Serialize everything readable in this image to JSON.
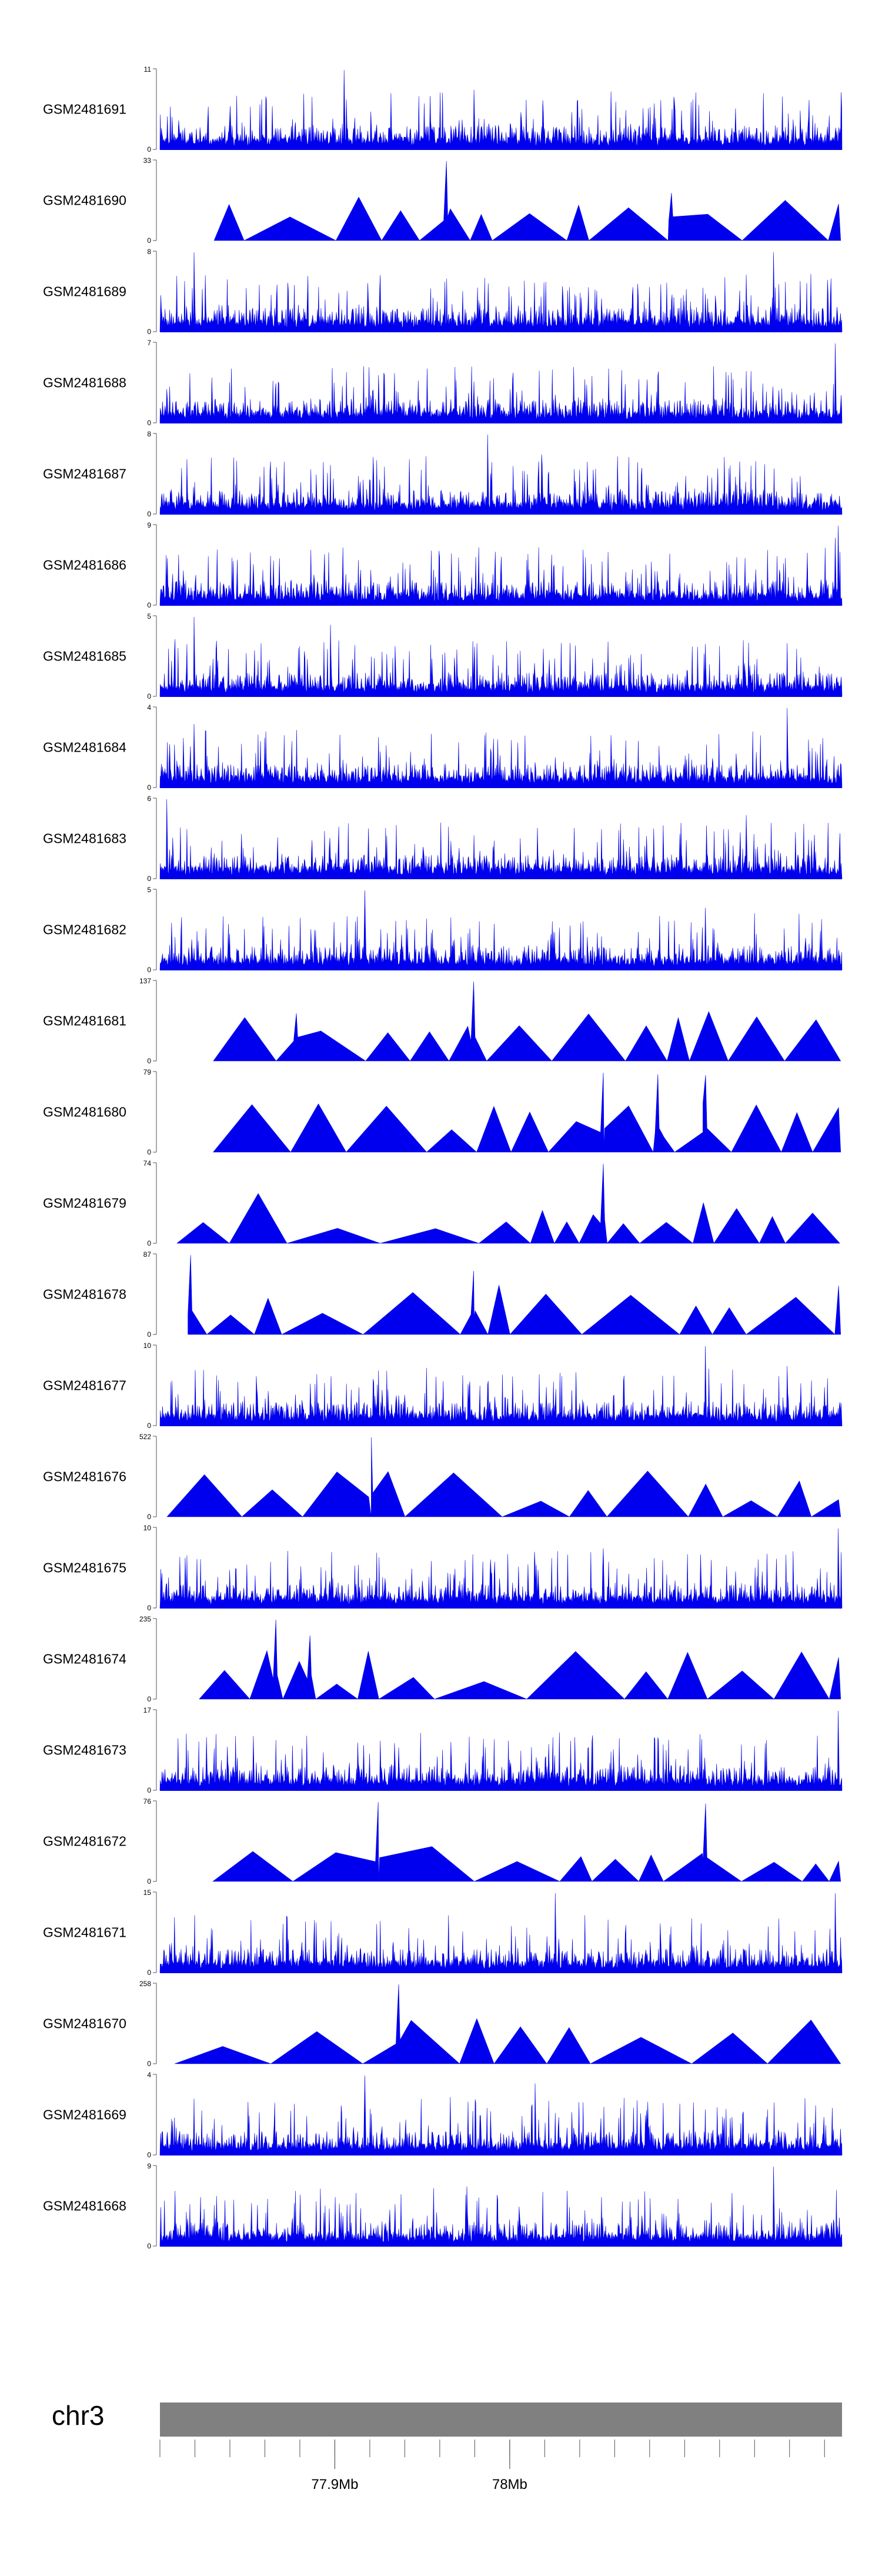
{
  "chart_data": {
    "type": "area",
    "colors": {
      "signal": "#0000ee",
      "axis": "#555555",
      "ideogram": "#808080"
    },
    "tracks": [
      {
        "name": "GSM2481691",
        "ymax": 11,
        "ymin": 0,
        "style": "dense",
        "seed": 11,
        "peaks": [
          [
            0.27,
            1.0
          ],
          [
            0.46,
            0.75
          ]
        ]
      },
      {
        "name": "GSM2481690",
        "ymax": 33,
        "ymin": 0,
        "style": "sparse",
        "seed": 12,
        "peaks": [
          [
            0.42,
            1.0
          ],
          [
            0.75,
            0.6
          ]
        ]
      },
      {
        "name": "GSM2481689",
        "ymax": 8,
        "ymin": 0,
        "style": "dense",
        "seed": 13,
        "peaks": [
          [
            0.05,
            1.0
          ],
          [
            0.9,
            1.0
          ]
        ]
      },
      {
        "name": "GSM2481688",
        "ymax": 7,
        "ymin": 0,
        "style": "dense",
        "seed": 14,
        "peaks": [
          [
            0.99,
            1.0
          ],
          [
            0.32,
            0.6
          ]
        ]
      },
      {
        "name": "GSM2481687",
        "ymax": 8,
        "ymin": 0,
        "style": "dense",
        "seed": 15,
        "peaks": [
          [
            0.48,
            1.0
          ],
          [
            0.56,
            0.75
          ]
        ]
      },
      {
        "name": "GSM2481686",
        "ymax": 9,
        "ymin": 0,
        "style": "dense",
        "seed": 16,
        "peaks": [
          [
            0.995,
            1.0
          ],
          [
            0.99,
            0.85
          ]
        ]
      },
      {
        "name": "GSM2481685",
        "ymax": 5,
        "ymin": 0,
        "style": "dense",
        "seed": 17,
        "peaks": [
          [
            0.05,
            1.0
          ],
          [
            0.25,
            0.9
          ]
        ]
      },
      {
        "name": "GSM2481684",
        "ymax": 4,
        "ymin": 0,
        "style": "dense",
        "seed": 18,
        "peaks": [
          [
            0.92,
            1.0
          ],
          [
            0.05,
            0.8
          ]
        ]
      },
      {
        "name": "GSM2481683",
        "ymax": 6,
        "ymin": 0,
        "style": "dense",
        "seed": 19,
        "peaks": [
          [
            0.01,
            1.0
          ],
          [
            0.86,
            0.8
          ]
        ]
      },
      {
        "name": "GSM2481682",
        "ymax": 5,
        "ymin": 0,
        "style": "dense",
        "seed": 20,
        "peaks": [
          [
            0.3,
            1.0
          ],
          [
            0.8,
            0.78
          ]
        ]
      },
      {
        "name": "GSM2481681",
        "ymax": 137,
        "ymin": 0,
        "style": "sparse",
        "seed": 21,
        "peaks": [
          [
            0.46,
            1.0
          ],
          [
            0.2,
            0.6
          ]
        ]
      },
      {
        "name": "GSM2481680",
        "ymax": 79,
        "ymin": 0,
        "style": "sparse",
        "seed": 22,
        "peaks": [
          [
            0.65,
            1.0
          ],
          [
            0.73,
            0.98
          ],
          [
            0.8,
            0.97
          ]
        ]
      },
      {
        "name": "GSM2481679",
        "ymax": 74,
        "ymin": 0,
        "style": "sparse",
        "seed": 23,
        "peaks": [
          [
            0.65,
            1.0
          ]
        ]
      },
      {
        "name": "GSM2481678",
        "ymax": 87,
        "ymin": 0,
        "style": "sparse",
        "seed": 24,
        "peaks": [
          [
            0.045,
            1.0
          ],
          [
            0.46,
            0.8
          ]
        ]
      },
      {
        "name": "GSM2481677",
        "ymax": 10,
        "ymin": 0,
        "style": "dense",
        "seed": 25,
        "peaks": [
          [
            0.8,
            1.0
          ],
          [
            0.92,
            0.75
          ]
        ]
      },
      {
        "name": "GSM2481676",
        "ymax": 522,
        "ymin": 0,
        "style": "sparse",
        "seed": 26,
        "peaks": [
          [
            0.31,
            1.0
          ]
        ]
      },
      {
        "name": "GSM2481675",
        "ymax": 10,
        "ymin": 0,
        "style": "dense",
        "seed": 27,
        "peaks": [
          [
            0.995,
            1.0
          ],
          [
            0.65,
            0.75
          ]
        ]
      },
      {
        "name": "GSM2481674",
        "ymax": 235,
        "ymin": 0,
        "style": "sparse",
        "seed": 28,
        "peaks": [
          [
            0.17,
            1.0
          ],
          [
            0.22,
            0.8
          ]
        ]
      },
      {
        "name": "GSM2481673",
        "ymax": 17,
        "ymin": 0,
        "style": "dense",
        "seed": 29,
        "peaks": [
          [
            0.995,
            1.0
          ],
          [
            0.29,
            0.6
          ]
        ]
      },
      {
        "name": "GSM2481672",
        "ymax": 76,
        "ymin": 0,
        "style": "sparse",
        "seed": 30,
        "peaks": [
          [
            0.32,
            1.0
          ],
          [
            0.8,
            0.98
          ]
        ]
      },
      {
        "name": "GSM2481671",
        "ymax": 15,
        "ymin": 0,
        "style": "dense",
        "seed": 31,
        "peaks": [
          [
            0.58,
            1.0
          ],
          [
            0.99,
            1.0
          ]
        ]
      },
      {
        "name": "GSM2481670",
        "ymax": 258,
        "ymin": 0,
        "style": "sparse",
        "seed": 32,
        "peaks": [
          [
            0.35,
            1.0
          ]
        ]
      },
      {
        "name": "GSM2481669",
        "ymax": 4,
        "ymin": 0,
        "style": "dense",
        "seed": 33,
        "peaks": [
          [
            0.3,
            1.0
          ],
          [
            0.55,
            0.9
          ]
        ]
      },
      {
        "name": "GSM2481668",
        "ymax": 9,
        "ymin": 0,
        "style": "dense",
        "seed": 34,
        "peaks": [
          [
            0.9,
            1.0
          ],
          [
            0.45,
            0.75
          ]
        ]
      }
    ],
    "chromosome": "chr3",
    "x_axis": {
      "range_mb": [
        77.8,
        78.19
      ],
      "tick_labels": [
        {
          "label": "77.9Mb",
          "value": 77.9
        },
        {
          "label": "78Mb",
          "value": 78.0
        }
      ],
      "minor_tick_step_mb": 0.02
    }
  }
}
